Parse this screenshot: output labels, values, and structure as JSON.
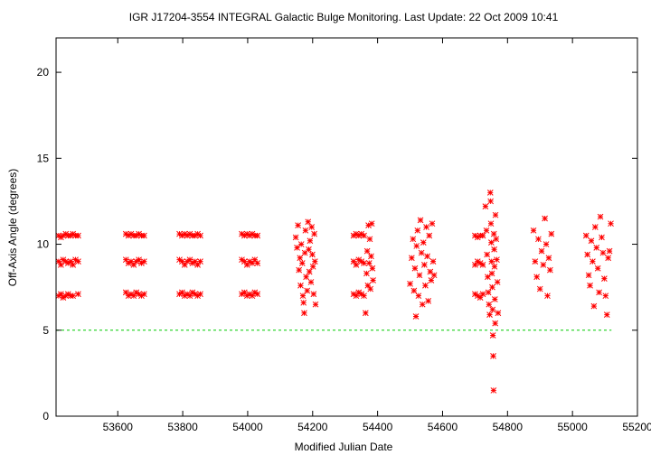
{
  "chart_data": {
    "type": "scatter",
    "title": "IGR J17204-3554   INTEGRAL Galactic Bulge Monitoring.  Last Update: 22 Oct 2009 10:41",
    "xlabel": "Modified Julian Date",
    "ylabel": "Off-Axis Angle (degrees)",
    "xlim": [
      53410,
      55200
    ],
    "ylim": [
      0,
      22
    ],
    "x_ticks": [
      53600,
      53800,
      54000,
      54200,
      54400,
      54600,
      54800,
      55000,
      55200
    ],
    "y_ticks": [
      0,
      5,
      10,
      15,
      20
    ],
    "grid": false,
    "marker": "asterisk",
    "colors": {
      "points": "#ff0000",
      "reference_line": "#00cc00"
    },
    "reference_line": {
      "y": 5,
      "x_from": 53410,
      "x_to": 55120,
      "style": "dashed"
    },
    "series": [
      {
        "color": "#ff0000",
        "points": [
          [
            53418,
            10.5
          ],
          [
            53425,
            10.4
          ],
          [
            53432,
            10.5
          ],
          [
            53440,
            10.6
          ],
          [
            53447,
            10.5
          ],
          [
            53455,
            10.5
          ],
          [
            53462,
            10.6
          ],
          [
            53470,
            10.5
          ],
          [
            53478,
            10.5
          ],
          [
            53418,
            9.0
          ],
          [
            53425,
            8.8
          ],
          [
            53432,
            9.1
          ],
          [
            53440,
            9.0
          ],
          [
            53447,
            8.9
          ],
          [
            53455,
            9.0
          ],
          [
            53462,
            8.8
          ],
          [
            53470,
            9.1
          ],
          [
            53478,
            9.0
          ],
          [
            53418,
            7.0
          ],
          [
            53425,
            7.1
          ],
          [
            53432,
            6.9
          ],
          [
            53440,
            7.0
          ],
          [
            53447,
            7.1
          ],
          [
            53455,
            7.0
          ],
          [
            53462,
            7.0
          ],
          [
            53478,
            7.1
          ],
          [
            53625,
            10.6
          ],
          [
            53633,
            10.5
          ],
          [
            53641,
            10.6
          ],
          [
            53649,
            10.5
          ],
          [
            53657,
            10.5
          ],
          [
            53665,
            10.6
          ],
          [
            53673,
            10.5
          ],
          [
            53681,
            10.5
          ],
          [
            53625,
            9.1
          ],
          [
            53633,
            8.9
          ],
          [
            53641,
            9.0
          ],
          [
            53649,
            8.8
          ],
          [
            53657,
            9.0
          ],
          [
            53665,
            9.1
          ],
          [
            53673,
            8.9
          ],
          [
            53681,
            9.0
          ],
          [
            53625,
            7.2
          ],
          [
            53633,
            7.0
          ],
          [
            53641,
            7.1
          ],
          [
            53649,
            7.0
          ],
          [
            53657,
            7.2
          ],
          [
            53665,
            7.1
          ],
          [
            53673,
            7.0
          ],
          [
            53681,
            7.1
          ],
          [
            53790,
            10.6
          ],
          [
            53798,
            10.5
          ],
          [
            53806,
            10.6
          ],
          [
            53814,
            10.5
          ],
          [
            53822,
            10.6
          ],
          [
            53830,
            10.5
          ],
          [
            53838,
            10.5
          ],
          [
            53846,
            10.6
          ],
          [
            53854,
            10.5
          ],
          [
            53790,
            9.1
          ],
          [
            53798,
            9.0
          ],
          [
            53806,
            8.8
          ],
          [
            53814,
            9.0
          ],
          [
            53822,
            9.1
          ],
          [
            53830,
            8.9
          ],
          [
            53838,
            9.0
          ],
          [
            53846,
            8.8
          ],
          [
            53854,
            9.0
          ],
          [
            53790,
            7.1
          ],
          [
            53798,
            7.2
          ],
          [
            53806,
            7.0
          ],
          [
            53814,
            7.1
          ],
          [
            53822,
            7.0
          ],
          [
            53830,
            7.2
          ],
          [
            53838,
            7.1
          ],
          [
            53846,
            7.0
          ],
          [
            53854,
            7.1
          ],
          [
            53982,
            10.6
          ],
          [
            53990,
            10.5
          ],
          [
            53998,
            10.6
          ],
          [
            54006,
            10.5
          ],
          [
            54014,
            10.6
          ],
          [
            54022,
            10.5
          ],
          [
            54030,
            10.5
          ],
          [
            53982,
            9.1
          ],
          [
            53990,
            9.0
          ],
          [
            53998,
            8.8
          ],
          [
            54006,
            9.0
          ],
          [
            54014,
            8.9
          ],
          [
            54022,
            9.1
          ],
          [
            54030,
            8.9
          ],
          [
            53982,
            7.1
          ],
          [
            53990,
            7.2
          ],
          [
            53998,
            7.0
          ],
          [
            54006,
            7.1
          ],
          [
            54014,
            7.0
          ],
          [
            54022,
            7.2
          ],
          [
            54030,
            7.1
          ],
          [
            54148,
            10.4
          ],
          [
            54152,
            9.8
          ],
          [
            54155,
            11.1
          ],
          [
            54158,
            8.5
          ],
          [
            54161,
            9.2
          ],
          [
            54163,
            7.6
          ],
          [
            54165,
            10.0
          ],
          [
            54168,
            8.9
          ],
          [
            54170,
            7.0
          ],
          [
            54172,
            6.6
          ],
          [
            54174,
            6.0
          ],
          [
            54176,
            9.5
          ],
          [
            54178,
            10.8
          ],
          [
            54180,
            8.1
          ],
          [
            54183,
            7.3
          ],
          [
            54186,
            11.3
          ],
          [
            54188,
            9.7
          ],
          [
            54190,
            8.4
          ],
          [
            54192,
            10.2
          ],
          [
            54195,
            7.8
          ],
          [
            54197,
            11.0
          ],
          [
            54199,
            9.4
          ],
          [
            54201,
            8.7
          ],
          [
            54203,
            7.1
          ],
          [
            54205,
            10.6
          ],
          [
            54207,
            9.0
          ],
          [
            54209,
            6.5
          ],
          [
            54326,
            10.5
          ],
          [
            54334,
            10.6
          ],
          [
            54342,
            10.5
          ],
          [
            54350,
            10.6
          ],
          [
            54358,
            10.5
          ],
          [
            54326,
            9.0
          ],
          [
            54334,
            8.8
          ],
          [
            54342,
            9.1
          ],
          [
            54350,
            9.0
          ],
          [
            54358,
            8.9
          ],
          [
            54326,
            7.1
          ],
          [
            54334,
            7.0
          ],
          [
            54342,
            7.2
          ],
          [
            54350,
            7.1
          ],
          [
            54358,
            7.0
          ],
          [
            54363,
            6.0
          ],
          [
            54366,
            8.3
          ],
          [
            54368,
            9.6
          ],
          [
            54370,
            7.6
          ],
          [
            54372,
            11.1
          ],
          [
            54374,
            8.9
          ],
          [
            54376,
            10.3
          ],
          [
            54378,
            7.4
          ],
          [
            54380,
            9.3
          ],
          [
            54382,
            11.2
          ],
          [
            54384,
            8.6
          ],
          [
            54386,
            7.9
          ],
          [
            54500,
            7.7
          ],
          [
            54505,
            9.2
          ],
          [
            54509,
            10.3
          ],
          [
            54512,
            7.3
          ],
          [
            54515,
            8.6
          ],
          [
            54518,
            5.8
          ],
          [
            54520,
            9.9
          ],
          [
            54523,
            10.8
          ],
          [
            54526,
            7.0
          ],
          [
            54529,
            8.2
          ],
          [
            54532,
            11.4
          ],
          [
            54535,
            9.5
          ],
          [
            54538,
            6.5
          ],
          [
            54541,
            10.1
          ],
          [
            54544,
            8.8
          ],
          [
            54547,
            7.6
          ],
          [
            54550,
            11.0
          ],
          [
            54553,
            9.3
          ],
          [
            54556,
            6.7
          ],
          [
            54559,
            10.5
          ],
          [
            54562,
            8.4
          ],
          [
            54565,
            7.9
          ],
          [
            54568,
            11.2
          ],
          [
            54571,
            9.0
          ],
          [
            54574,
            8.2
          ],
          [
            54700,
            10.5
          ],
          [
            54708,
            10.4
          ],
          [
            54716,
            10.5
          ],
          [
            54724,
            10.5
          ],
          [
            54700,
            8.8
          ],
          [
            54708,
            9.0
          ],
          [
            54716,
            8.9
          ],
          [
            54724,
            8.8
          ],
          [
            54700,
            7.1
          ],
          [
            54708,
            7.0
          ],
          [
            54716,
            6.9
          ],
          [
            54724,
            7.1
          ],
          [
            54732,
            12.2
          ],
          [
            54735,
            10.8
          ],
          [
            54737,
            9.4
          ],
          [
            54739,
            8.1
          ],
          [
            54741,
            7.2
          ],
          [
            54743,
            6.5
          ],
          [
            54745,
            5.9
          ],
          [
            54747,
            13.0
          ],
          [
            54748,
            12.5
          ],
          [
            54749,
            11.2
          ],
          [
            54750,
            10.1
          ],
          [
            54751,
            9.0
          ],
          [
            54752,
            8.3
          ],
          [
            54753,
            7.5
          ],
          [
            54754,
            6.2
          ],
          [
            54755,
            4.7
          ],
          [
            54756,
            3.5
          ],
          [
            54757,
            1.5
          ],
          [
            54758,
            10.6
          ],
          [
            54759,
            9.7
          ],
          [
            54760,
            8.7
          ],
          [
            54761,
            6.8
          ],
          [
            54762,
            5.4
          ],
          [
            54763,
            11.7
          ],
          [
            54765,
            10.3
          ],
          [
            54767,
            9.1
          ],
          [
            54769,
            7.8
          ],
          [
            54771,
            6.0
          ],
          [
            54880,
            10.8
          ],
          [
            54885,
            9.0
          ],
          [
            54890,
            8.1
          ],
          [
            54895,
            10.3
          ],
          [
            54900,
            7.4
          ],
          [
            54905,
            9.6
          ],
          [
            54910,
            8.8
          ],
          [
            54915,
            11.5
          ],
          [
            54919,
            10.0
          ],
          [
            54923,
            7.0
          ],
          [
            54927,
            9.2
          ],
          [
            54931,
            8.5
          ],
          [
            54935,
            10.6
          ],
          [
            55042,
            10.5
          ],
          [
            55046,
            9.4
          ],
          [
            55050,
            8.2
          ],
          [
            55054,
            7.6
          ],
          [
            55058,
            10.2
          ],
          [
            55062,
            9.0
          ],
          [
            55066,
            6.4
          ],
          [
            55070,
            11.0
          ],
          [
            55074,
            9.8
          ],
          [
            55078,
            8.6
          ],
          [
            55082,
            7.2
          ],
          [
            55086,
            11.6
          ],
          [
            55090,
            10.4
          ],
          [
            55094,
            9.5
          ],
          [
            55098,
            8.0
          ],
          [
            55102,
            7.0
          ],
          [
            55106,
            5.9
          ],
          [
            55110,
            9.2
          ],
          [
            55114,
            9.6
          ],
          [
            55118,
            11.2
          ]
        ]
      }
    ]
  }
}
